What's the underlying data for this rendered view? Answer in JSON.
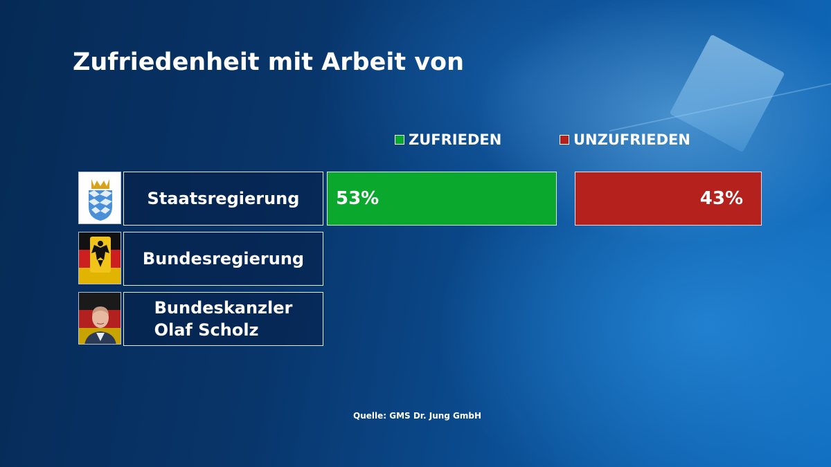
{
  "title": "Zufriedenheit mit Arbeit von",
  "source": "Quelle: GMS Dr. Jung GmbH",
  "colors": {
    "zufrieden": "#0aa82c",
    "unzufrieden": "#b5211c"
  },
  "rows": [
    {
      "label": "Staatsregierung",
      "icon": "bavaria-coat-of-arms-icon"
    },
    {
      "label": "Bundesregierung",
      "icon": "german-eagle-flag-icon"
    },
    {
      "label_line1": "Bundeskanzler",
      "label_line2": "Olaf Scholz",
      "icon": "olaf-scholz-portrait"
    }
  ],
  "chart_data": {
    "type": "bar",
    "title": "Zufriedenheit mit Arbeit von",
    "categories": [
      "Staatsregierung",
      "Bundesregierung",
      "Bundeskanzler Olaf Scholz"
    ],
    "series": [
      {
        "name": "ZUFRIEDEN",
        "values": [
          53,
          null,
          null
        ],
        "labels": [
          "53%",
          "",
          ""
        ]
      },
      {
        "name": "UNZUFRIEDEN",
        "values": [
          43,
          null,
          null
        ],
        "labels": [
          "43%",
          "",
          ""
        ]
      }
    ],
    "stacked": true,
    "orientation": "horizontal",
    "xlim": [
      0,
      100
    ],
    "legend": "top",
    "grid": false
  }
}
